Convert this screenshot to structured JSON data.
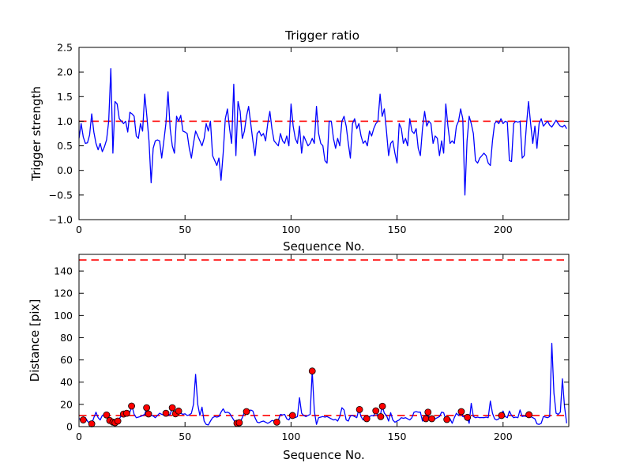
{
  "figure": {
    "background": "#ffffff",
    "line_color": "#0000ff",
    "threshold_color": "#ff0000",
    "marker_face_color": "#ff0000",
    "marker_edge_color": "#000000",
    "frame_color": "#000000"
  },
  "chart_data": [
    {
      "type": "line",
      "title": "Trigger ratio",
      "xlabel": "Sequence No.",
      "ylabel": "Trigger strength",
      "xlim": [
        0,
        231
      ],
      "ylim": [
        -1.0,
        2.5
      ],
      "grid": false,
      "legend": null,
      "xticks": [
        {
          "label": "0",
          "value": 0
        },
        {
          "label": "50",
          "value": 50
        },
        {
          "label": "100",
          "value": 100
        },
        {
          "label": "150",
          "value": 150
        },
        {
          "label": "200",
          "value": 200
        }
      ],
      "yticks": [
        {
          "label": "−1.0",
          "value": -1.0
        },
        {
          "label": "−0.5",
          "value": -0.5
        },
        {
          "label": "0.0",
          "value": 0.0
        },
        {
          "label": "0.5",
          "value": 0.5
        },
        {
          "label": "1.0",
          "value": 1.0
        },
        {
          "label": "1.5",
          "value": 1.5
        },
        {
          "label": "2.0",
          "value": 2.0
        },
        {
          "label": "2.5",
          "value": 2.5
        }
      ],
      "thresholds": [
        {
          "value": 1.0,
          "style": "dashed"
        }
      ],
      "series": [
        {
          "name": "trigger-strength",
          "color": "#0000ff",
          "x_start": 0,
          "x_step": 1,
          "values": [
            0.65,
            0.95,
            0.68,
            0.55,
            0.56,
            0.72,
            1.15,
            0.78,
            0.55,
            0.42,
            0.55,
            0.38,
            0.48,
            0.62,
            1.0,
            2.07,
            0.35,
            1.4,
            1.35,
            1.05,
            1.0,
            0.95,
            1.0,
            0.78,
            1.18,
            1.15,
            1.1,
            0.7,
            0.65,
            0.95,
            0.8,
            1.55,
            1.1,
            0.6,
            -0.25,
            0.45,
            0.6,
            0.62,
            0.6,
            0.25,
            0.6,
            0.95,
            1.6,
            0.85,
            0.5,
            0.35,
            1.1,
            1.0,
            1.12,
            0.8,
            0.78,
            0.75,
            0.45,
            0.25,
            0.55,
            0.8,
            0.7,
            0.6,
            0.5,
            0.65,
            0.95,
            0.8,
            1.0,
            0.3,
            0.2,
            0.1,
            0.25,
            -0.2,
            0.35,
            1.05,
            1.25,
            0.85,
            0.55,
            1.75,
            0.3,
            1.4,
            1.2,
            0.65,
            0.8,
            1.1,
            1.3,
            0.95,
            0.6,
            0.3,
            0.75,
            0.8,
            0.7,
            0.75,
            0.6,
            0.95,
            1.2,
            0.85,
            0.6,
            0.55,
            0.5,
            0.75,
            0.6,
            0.55,
            0.7,
            0.5,
            1.35,
            0.9,
            0.65,
            0.55,
            0.9,
            0.35,
            0.7,
            0.6,
            0.5,
            0.55,
            0.65,
            0.55,
            1.3,
            0.75,
            0.55,
            0.5,
            0.2,
            0.15,
            1.0,
            1.0,
            0.65,
            0.45,
            0.65,
            0.5,
            1.0,
            1.1,
            0.9,
            0.55,
            0.25,
            0.95,
            1.05,
            0.85,
            0.95,
            0.7,
            0.55,
            0.6,
            0.5,
            0.8,
            0.7,
            0.85,
            0.95,
            1.0,
            1.55,
            1.1,
            1.25,
            0.8,
            0.3,
            0.55,
            0.6,
            0.35,
            0.15,
            0.95,
            0.85,
            0.55,
            0.65,
            0.5,
            1.05,
            0.8,
            0.75,
            0.85,
            0.45,
            0.3,
            0.85,
            1.2,
            0.9,
            1.0,
            0.95,
            0.55,
            0.7,
            0.65,
            0.3,
            0.6,
            0.35,
            1.35,
            0.9,
            0.55,
            0.6,
            0.55,
            0.9,
            1.0,
            1.25,
            1.05,
            -0.5,
            0.6,
            1.1,
            0.95,
            0.75,
            0.2,
            0.15,
            0.25,
            0.3,
            0.35,
            0.3,
            0.15,
            0.1,
            0.6,
            0.95,
            1.0,
            0.95,
            1.05,
            0.95,
            1.0,
            0.98,
            0.2,
            0.18,
            0.95,
            1.0,
            0.98,
            1.0,
            0.25,
            0.3,
            0.9,
            1.4,
            0.95,
            0.55,
            0.9,
            0.45,
            0.95,
            1.05,
            0.9,
            0.95,
            1.0,
            0.92,
            0.88,
            0.95,
            1.02,
            0.95,
            0.9,
            0.88,
            0.92,
            0.85
          ]
        }
      ]
    },
    {
      "type": "line+scatter",
      "title": "",
      "xlabel": "Sequence No.",
      "ylabel": "Distance [pix]",
      "xlim": [
        0,
        231
      ],
      "ylim": [
        0,
        155
      ],
      "grid": false,
      "legend": null,
      "xticks": [
        {
          "label": "0",
          "value": 0
        },
        {
          "label": "50",
          "value": 50
        },
        {
          "label": "100",
          "value": 100
        },
        {
          "label": "150",
          "value": 150
        },
        {
          "label": "200",
          "value": 200
        }
      ],
      "yticks": [
        {
          "label": "0",
          "value": 0
        },
        {
          "label": "20",
          "value": 20
        },
        {
          "label": "40",
          "value": 40
        },
        {
          "label": "60",
          "value": 60
        },
        {
          "label": "80",
          "value": 80
        },
        {
          "label": "100",
          "value": 100
        },
        {
          "label": "120",
          "value": 120
        },
        {
          "label": "140",
          "value": 140
        }
      ],
      "thresholds": [
        {
          "value": 150,
          "style": "dashed"
        },
        {
          "value": 10,
          "style": "dashed"
        }
      ],
      "series": [
        {
          "name": "distance",
          "color": "#0000ff",
          "x_start": 0,
          "x_step": 1,
          "values": [
            7,
            7,
            6,
            8,
            5,
            3,
            2.5,
            8,
            13,
            8,
            6,
            10,
            11,
            10.5,
            6,
            4.5,
            4,
            3.5,
            5,
            7,
            10,
            11.5,
            12,
            11,
            13,
            18.5,
            11,
            8,
            8.5,
            9,
            10,
            11,
            17,
            11.5,
            10,
            9.5,
            8,
            10,
            12,
            11,
            10.5,
            12,
            10,
            11,
            17,
            11.5,
            12,
            14,
            12,
            11,
            11.5,
            10,
            10.5,
            12,
            20,
            47,
            20,
            10,
            17.5,
            5,
            2,
            1.5,
            5,
            8,
            9,
            8.5,
            9,
            13,
            16,
            12.5,
            13,
            12,
            9,
            6,
            3,
            3.5,
            4,
            8,
            13,
            13.5,
            13,
            15,
            14,
            8,
            4,
            3.5,
            4.5,
            5,
            4,
            3,
            4,
            5.5,
            5,
            4,
            6,
            11,
            10.5,
            11,
            7,
            6,
            10,
            9,
            8,
            9,
            26,
            12,
            10,
            9,
            10,
            11,
            50,
            14,
            2,
            8,
            8.5,
            9,
            8.5,
            9,
            8,
            7,
            6,
            6.5,
            5,
            9,
            17,
            15,
            6,
            5,
            9.5,
            10,
            9,
            8,
            15.5,
            9,
            6,
            7,
            7,
            9,
            10,
            9.5,
            14,
            9,
            9,
            18.5,
            12,
            10,
            5,
            12.5,
            6,
            4,
            5,
            6,
            8,
            7.5,
            8,
            7,
            6,
            8,
            13,
            13.5,
            13,
            13,
            5,
            7,
            12.5,
            8,
            7,
            7.5,
            7,
            8,
            9,
            13,
            12.5,
            6.5,
            8,
            7,
            3,
            8,
            12,
            10,
            13.5,
            9,
            8.5,
            8.3,
            3,
            21,
            9,
            8,
            8.5,
            8,
            8.2,
            8,
            8.5,
            8,
            23,
            12,
            7,
            6,
            7,
            10,
            14,
            9,
            8,
            14,
            10,
            8,
            8.5,
            8,
            15,
            9,
            9.5,
            9,
            10.5,
            9,
            8,
            7,
            2.5,
            2,
            3,
            9,
            8.5,
            8,
            9,
            75,
            30,
            12,
            11,
            13,
            43,
            18,
            3
          ]
        },
        {
          "name": "trigger-events",
          "type": "scatter",
          "color": "#ff0000",
          "points": [
            [
              2,
              6
            ],
            [
              6,
              2.5
            ],
            [
              13,
              10.5
            ],
            [
              14.5,
              5.5
            ],
            [
              16,
              4
            ],
            [
              17,
              3.5
            ],
            [
              18.3,
              5
            ],
            [
              21,
              11.3
            ],
            [
              22.5,
              12
            ],
            [
              24.8,
              18.5
            ],
            [
              31.9,
              17
            ],
            [
              32.8,
              11.4
            ],
            [
              41,
              12
            ],
            [
              44,
              17
            ],
            [
              45.5,
              11.5
            ],
            [
              47,
              14
            ],
            [
              74.5,
              3
            ],
            [
              75.6,
              3.5
            ],
            [
              79,
              13.5
            ],
            [
              93.3,
              4
            ],
            [
              100.7,
              10
            ],
            [
              110,
              50
            ],
            [
              132.3,
              15.4
            ],
            [
              135.7,
              7.1
            ],
            [
              140,
              14.2
            ],
            [
              142.3,
              9
            ],
            [
              143.1,
              18.3
            ],
            [
              163.6,
              7.1
            ],
            [
              164.6,
              13
            ],
            [
              166.4,
              7.1
            ],
            [
              173.5,
              6.4
            ],
            [
              180.3,
              13.5
            ],
            [
              183.2,
              8.3
            ],
            [
              199.3,
              10
            ],
            [
              212.2,
              10.7
            ]
          ]
        }
      ]
    }
  ]
}
